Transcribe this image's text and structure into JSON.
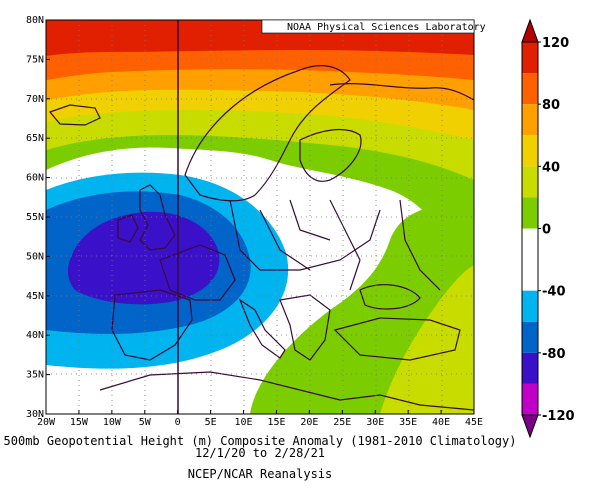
{
  "map": {
    "credit": "NOAA Physical Sciences Laboratory",
    "lat_ticks": [
      "80N",
      "75N",
      "70N",
      "65N",
      "60N",
      "55N",
      "50N",
      "45N",
      "40N",
      "35N",
      "30N"
    ],
    "lon_ticks": [
      "20W",
      "15W",
      "10W",
      "5W",
      "0",
      "5E",
      "10E",
      "15E",
      "20E",
      "25E",
      "30E",
      "35E",
      "40E",
      "45E"
    ],
    "extent": {
      "lon": [
        -20,
        45
      ],
      "lat": [
        30,
        80
      ]
    }
  },
  "caption": {
    "line1": "500mb Geopotential Height (m) Composite Anomaly (1981-2010 Climatology)",
    "line2": "12/1/20  to 2/28/21",
    "line3": "NCEP/NCAR Reanalysis"
  },
  "colorbar": {
    "labels": [
      "120",
      "80",
      "40",
      "0",
      "-40",
      "-80",
      "-120"
    ],
    "colors": [
      "#b00000",
      "#e02000",
      "#ff6000",
      "#ffa000",
      "#f0d000",
      "#c8dc00",
      "#7ccd00",
      "#ffffff",
      "#ffffff",
      "#00b4f0",
      "#0064c8",
      "#3a10c8",
      "#c000c8",
      "#7a0087"
    ]
  },
  "chart_data": {
    "type": "heatmap",
    "title": "500mb Geopotential Height (m) Composite Anomaly (1981-2010 Climatology)",
    "period": "12/1/20  to 2/28/21",
    "source": "NCEP/NCAR Reanalysis",
    "xlim": [
      -20,
      45
    ],
    "ylim": [
      30,
      80
    ],
    "color_levels": [
      -120,
      -100,
      -80,
      -60,
      -40,
      -20,
      0,
      20,
      40,
      60,
      80,
      100,
      120
    ]
  }
}
